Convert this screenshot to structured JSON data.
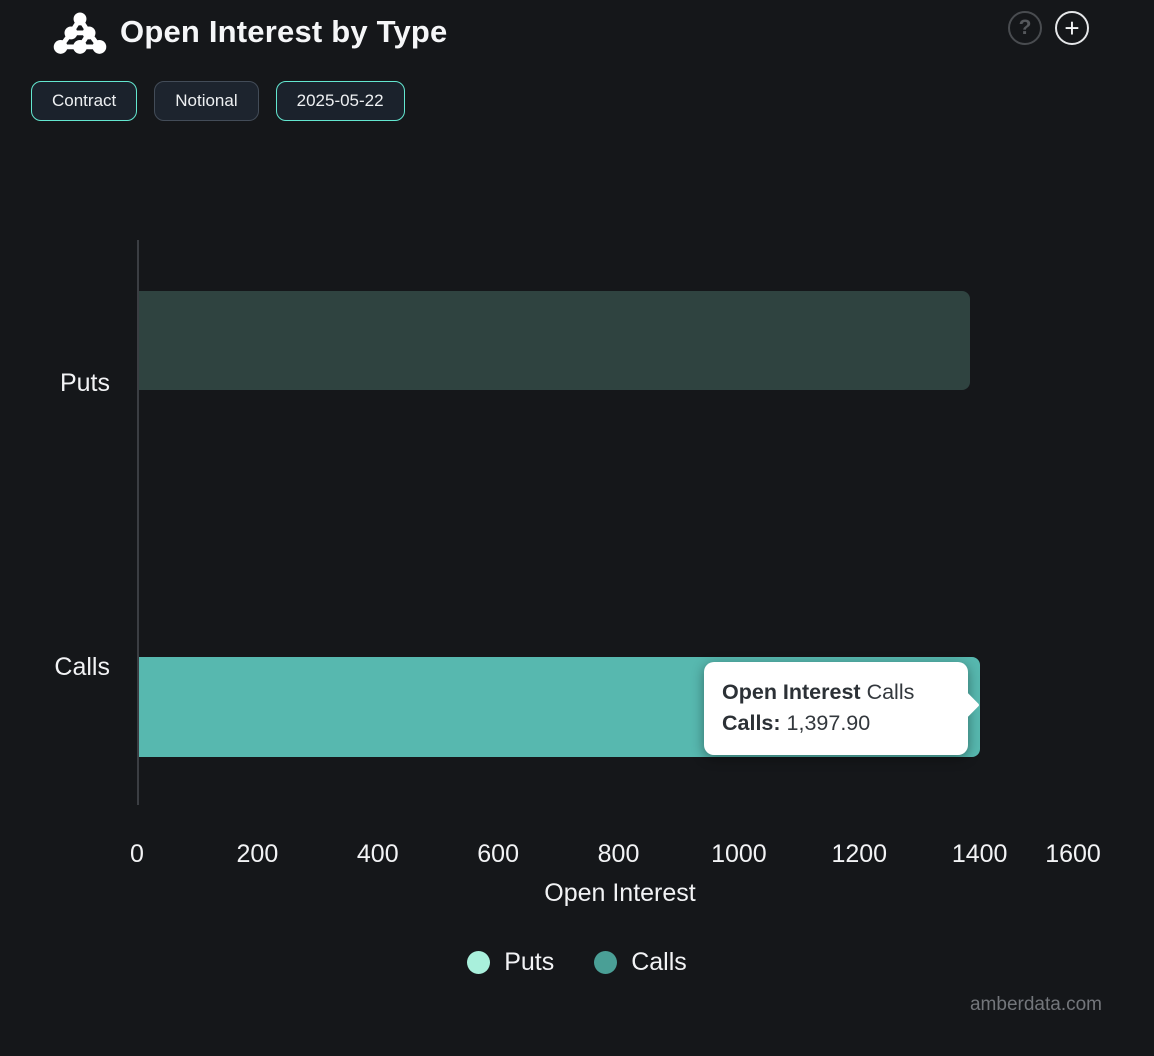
{
  "header": {
    "title": "Open Interest by Type",
    "help_glyph": "?",
    "add_glyph": "+"
  },
  "toolbar": {
    "buttons": [
      {
        "label": "Contract",
        "active": true
      },
      {
        "label": "Notional",
        "active": false
      },
      {
        "label": "2025-05-22",
        "active": true
      }
    ]
  },
  "chart_data": {
    "type": "bar",
    "orientation": "horizontal",
    "categories": [
      "Puts",
      "Calls"
    ],
    "values": [
      1380,
      1397.9
    ],
    "xlabel": "Open Interest",
    "xlim": [
      0,
      1600
    ],
    "xticks": [
      "0",
      "200",
      "400",
      "600",
      "800",
      "1000",
      "1200",
      "1400",
      "1600"
    ],
    "grid": "off",
    "legend_position": "bottom-center",
    "bar_colors": {
      "puts_dimmed": "#2f4340",
      "calls_highlight": "#57b8af"
    },
    "legend": [
      {
        "label": "Puts",
        "color": "#a9f0dc"
      },
      {
        "label": "Calls",
        "color": "#4a9f96"
      }
    ],
    "highlighted_series": "Calls"
  },
  "tooltip": {
    "title_bold": "Open Interest",
    "title_rest": " Calls",
    "row_label": "Calls:",
    "row_value": " 1,397.90"
  },
  "footer": {
    "watermark": "amberdata.com"
  }
}
